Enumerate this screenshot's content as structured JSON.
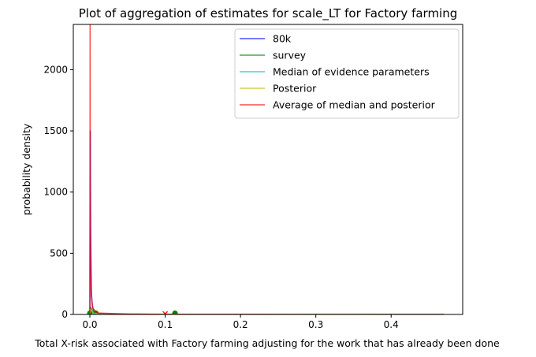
{
  "chart_data": {
    "type": "line",
    "title": "Plot of aggregation of estimates for scale_LT for Factory farming",
    "xlabel": "Total X-risk associated with Factory farming adjusting for the work that has already been done",
    "ylabel": "probability density",
    "xlim": [
      -0.022,
      0.495
    ],
    "ylim": [
      0,
      2370
    ],
    "xticks": [
      0.0,
      0.1,
      0.2,
      0.3,
      0.4
    ],
    "xtick_labels": [
      "0.0",
      "0.1",
      "0.2",
      "0.3",
      "0.4"
    ],
    "yticks": [
      0,
      500,
      1000,
      1500,
      2000
    ],
    "ytick_labels": [
      "0",
      "500",
      "1000",
      "1500",
      "2000"
    ],
    "grid": false,
    "legend_position": "top-right",
    "series": [
      {
        "name": "80k",
        "color": "#0000ff",
        "x": [
          0.0,
          0.0005,
          0.001,
          0.002,
          0.003,
          0.005,
          0.01,
          0.02,
          0.05,
          0.1,
          0.2,
          0.3,
          0.4,
          0.47
        ],
        "y": [
          0,
          1500,
          700,
          200,
          80,
          30,
          10,
          4,
          1.5,
          0.6,
          0.2,
          0.1,
          0.05,
          0
        ]
      },
      {
        "name": "survey",
        "color": "#008000",
        "x": [
          0.0,
          0.001,
          0.005,
          0.01,
          0.02,
          0.05,
          0.1,
          0.2,
          0.3,
          0.4,
          0.47
        ],
        "y": [
          0,
          60,
          15,
          8,
          5,
          3,
          2,
          1,
          0.6,
          0.3,
          0
        ],
        "markers": [
          {
            "x": 0.0,
            "y": 10
          },
          {
            "x": 0.008,
            "y": 10
          },
          {
            "x": 0.113,
            "y": 10
          }
        ]
      },
      {
        "name": "Median of evidence parameters",
        "color": "#00bfbf",
        "x": [
          0.0,
          0.001,
          0.005,
          0.02,
          0.1,
          0.47
        ],
        "y": [
          0,
          40,
          10,
          3,
          1,
          0
        ]
      },
      {
        "name": "Posterior",
        "color": "#bfbf00",
        "x": [
          0.0,
          0.001,
          0.005,
          0.02,
          0.1,
          0.47
        ],
        "y": [
          0,
          40,
          10,
          3,
          1,
          0
        ]
      },
      {
        "name": "Average of median and posterior",
        "color": "#ff0000",
        "x": [
          0.0,
          0.0003,
          0.0006,
          0.001,
          0.002,
          0.004,
          0.01,
          0.05,
          0.1,
          0.2,
          0.3,
          0.4,
          0.47
        ],
        "y": [
          0,
          2370,
          1200,
          400,
          150,
          50,
          12,
          3,
          1,
          0.5,
          0.2,
          0.1,
          0
        ],
        "markers": [
          {
            "x": 0.1,
            "y": 5
          }
        ]
      }
    ]
  }
}
